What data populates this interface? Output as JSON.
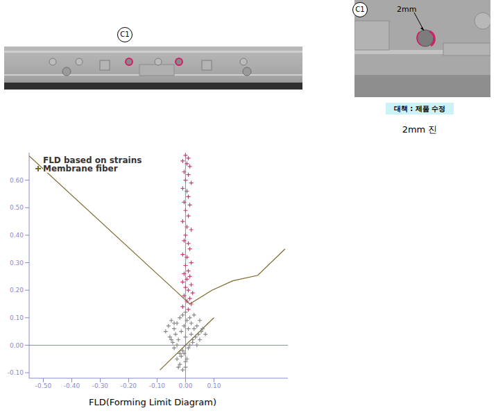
{
  "figure": {
    "part_label": "C1",
    "detail_label": "C1",
    "dimension": "2mm",
    "countermeasure": "대책 : 제품 수정",
    "caption": "2mm 진"
  },
  "chart_data": {
    "type": "scatter",
    "title": "FLD(Forming Limit Diagram)",
    "annotations": [
      "FLD based on strains",
      "Membrane fiber"
    ],
    "xlim": [
      -0.55,
      0.36
    ],
    "ylim": [
      -0.12,
      0.7
    ],
    "xticks": [
      {
        "value": -0.5,
        "label": "-0.50"
      },
      {
        "value": -0.4,
        "label": "-0.40"
      },
      {
        "value": -0.3,
        "label": "-0.30"
      },
      {
        "value": -0.2,
        "label": "-0.20"
      },
      {
        "value": -0.1,
        "label": "-0.10"
      },
      {
        "value": 0,
        "label": "0.00"
      },
      {
        "value": 0.1,
        "label": "0.10"
      }
    ],
    "yticks": [
      {
        "value": -0.1,
        "label": "-0.10"
      },
      {
        "value": 0,
        "label": "0.00"
      },
      {
        "value": 0.1,
        "label": "0.10"
      },
      {
        "value": 0.2,
        "label": "0.20"
      },
      {
        "value": 0.3,
        "label": "0.30"
      },
      {
        "value": 0.4,
        "label": "0.40"
      },
      {
        "value": 0.5,
        "label": "0.50"
      },
      {
        "value": 0.6,
        "label": "0.60"
      }
    ],
    "series": [
      {
        "type": "line",
        "color": "#7a6a2a",
        "marker": "none",
        "x": [
          -0.55,
          0.015,
          0.093,
          0.166,
          0.254,
          0.35
        ],
        "values": [
          0.688,
          0.15,
          0.2,
          0.234,
          0.254,
          0.35
        ]
      },
      {
        "type": "line",
        "color": "#7a6a2a",
        "marker": "none",
        "x": [
          -0.09,
          0.1
        ],
        "values": [
          -0.09,
          0.1
        ]
      },
      {
        "type": "scatter",
        "color": "#888888",
        "marker": "plus",
        "x": [
          -0.07,
          -0.06,
          -0.055,
          -0.05,
          -0.045,
          -0.04,
          -0.04,
          -0.035,
          -0.03,
          -0.03,
          -0.025,
          -0.02,
          -0.02,
          -0.015,
          -0.01,
          -0.01,
          -0.005,
          0.0,
          0.0,
          0.005,
          0.01,
          0.01,
          0.015,
          0.02,
          0.02,
          0.025,
          0.03,
          0.03,
          0.035,
          0.04,
          0.045,
          0.05,
          0.055,
          0.06,
          0.07,
          -0.03,
          -0.02,
          -0.01,
          0.0,
          -0.025,
          -0.015,
          -0.005,
          0.005,
          0.015,
          0.025,
          -0.05,
          -0.04,
          0.04,
          0.05,
          0.0
        ],
        "values": [
          0.05,
          0.07,
          0.03,
          0.09,
          0.01,
          0.06,
          -0.01,
          0.04,
          0.08,
          0.0,
          0.02,
          0.1,
          -0.03,
          0.05,
          0.11,
          -0.02,
          0.07,
          0.12,
          0.03,
          0.09,
          0.06,
          -0.01,
          0.1,
          0.04,
          0.08,
          0.01,
          0.06,
          0.11,
          0.03,
          0.07,
          0.04,
          0.09,
          0.05,
          0.06,
          0.04,
          -0.05,
          -0.07,
          -0.09,
          -0.06,
          -0.08,
          -0.04,
          -0.03,
          -0.05,
          0.0,
          0.02,
          0.02,
          0.08,
          0.0,
          0.02,
          -0.08
        ]
      },
      {
        "type": "scatter",
        "color": "#e0307a",
        "marker": "plus",
        "x": [
          0.0,
          0.01,
          -0.01,
          0.005,
          0.015,
          -0.005,
          0.01,
          0.0,
          0.02,
          -0.01,
          0.005,
          0.01,
          -0.005,
          0.015,
          0.0,
          0.01,
          -0.01,
          0.005,
          0.02,
          0.0,
          -0.005,
          0.01,
          0.015,
          -0.01,
          0.005,
          0.02,
          0.0,
          0.01,
          -0.005,
          0.015,
          0.005,
          -0.01,
          0.02,
          0.0,
          0.01,
          0.025,
          -0.005,
          0.015,
          0.005,
          0.02,
          -0.01,
          0.01
        ],
        "values": [
          0.69,
          0.68,
          0.67,
          0.66,
          0.65,
          0.63,
          0.62,
          0.6,
          0.59,
          0.57,
          0.56,
          0.54,
          0.52,
          0.51,
          0.49,
          0.47,
          0.45,
          0.43,
          0.42,
          0.4,
          0.38,
          0.37,
          0.35,
          0.33,
          0.32,
          0.3,
          0.29,
          0.27,
          0.26,
          0.25,
          0.24,
          0.23,
          0.22,
          0.21,
          0.2,
          0.19,
          0.18,
          0.17,
          0.16,
          0.15,
          0.14,
          0.13
        ]
      }
    ]
  }
}
